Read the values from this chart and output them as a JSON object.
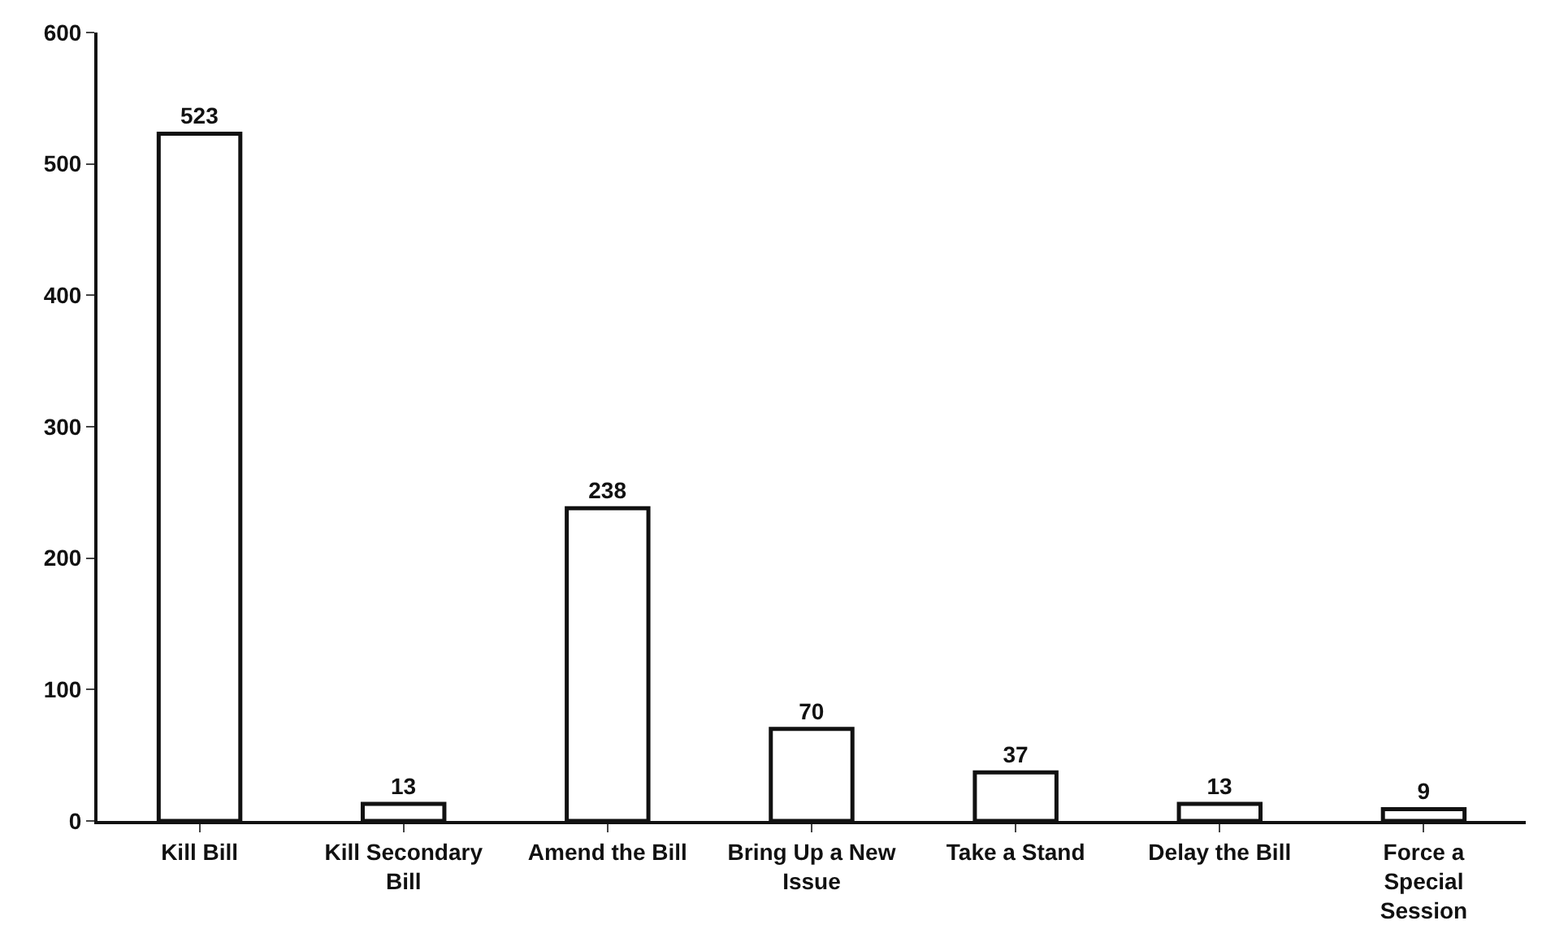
{
  "chart_data": {
    "type": "bar",
    "categories": [
      "Kill Bill",
      "Kill Secondary Bill",
      "Amend the Bill",
      "Bring Up a New Issue",
      "Take a Stand",
      "Delay the Bill",
      "Force a Special Session"
    ],
    "values": [
      523,
      13,
      238,
      70,
      37,
      13,
      9
    ],
    "color": "#ffffff",
    "ylim": [
      0,
      600
    ],
    "yticks": [
      0,
      100,
      200,
      300,
      400,
      500,
      600
    ],
    "data_labels": true,
    "grid": false,
    "legend": false
  }
}
